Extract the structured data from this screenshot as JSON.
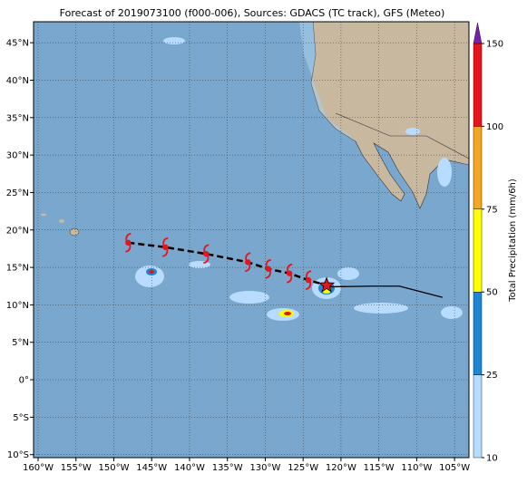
{
  "map": {
    "title": "Forecast of 2019073100 (f000-006), Sources: GDACS (TC track), GFS (Meteo)",
    "lon_range": [
      -160.6,
      -103.1
    ],
    "lat_range": [
      -10.4,
      47.8
    ],
    "lon_ticks": [
      {
        "value": -160,
        "label": "160°W"
      },
      {
        "value": -155,
        "label": "155°W"
      },
      {
        "value": -150,
        "label": "150°W"
      },
      {
        "value": -145,
        "label": "145°W"
      },
      {
        "value": -140,
        "label": "140°W"
      },
      {
        "value": -135,
        "label": "135°W"
      },
      {
        "value": -130,
        "label": "130°W"
      },
      {
        "value": -125,
        "label": "125°W"
      },
      {
        "value": -120,
        "label": "120°W"
      },
      {
        "value": -115,
        "label": "115°W"
      },
      {
        "value": -110,
        "label": "110°W"
      },
      {
        "value": -105,
        "label": "105°W"
      }
    ],
    "lat_ticks": [
      {
        "value": -10,
        "label": "10°S"
      },
      {
        "value": -5,
        "label": "5°S"
      },
      {
        "value": 0,
        "label": "0°"
      },
      {
        "value": 5,
        "label": "5°N"
      },
      {
        "value": 10,
        "label": "10°N"
      },
      {
        "value": 15,
        "label": "15°N"
      },
      {
        "value": 20,
        "label": "20°N"
      },
      {
        "value": 25,
        "label": "25°N"
      },
      {
        "value": 30,
        "label": "30°N"
      },
      {
        "value": 35,
        "label": "35°N"
      },
      {
        "value": 40,
        "label": "40°N"
      },
      {
        "value": 45,
        "label": "45°N"
      }
    ],
    "track_points": {
      "lon": [
        -148.1,
        -143.2,
        -137.8,
        -132.3,
        -129.6,
        -126.8,
        -124.3
      ],
      "lat": [
        18.3,
        17.7,
        16.8,
        15.7,
        14.8,
        14.2,
        13.3
      ]
    },
    "center": {
      "lon": -121.9,
      "lat": 12.6
    },
    "path": {
      "lon": [
        -121.9,
        -115.9,
        -112.3,
        -106.6
      ],
      "lat": [
        12.4,
        12.5,
        12.5,
        11.0
      ]
    },
    "colorbar": {
      "label": "Total Precipitation (mm/6h)",
      "ticks": [
        10,
        25,
        50,
        75,
        100,
        150
      ],
      "colors": [
        "#b8dcff",
        "#1f86d3",
        "#ffff00",
        "#f5a623",
        "#e8141c"
      ],
      "extend_color": "#7a1fa8"
    }
  }
}
